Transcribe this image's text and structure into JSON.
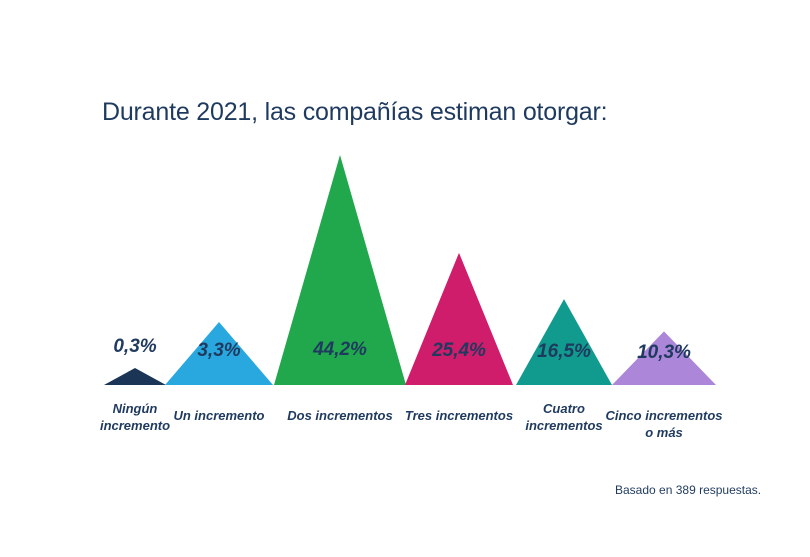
{
  "chart_data": {
    "type": "bar",
    "title": "Durante 2021, las compañías estiman otorgar:",
    "categories": [
      "Ningún incremento",
      "Un incremento",
      "Dos incrementos",
      "Tres incrementos",
      "Cuatro incrementos",
      "Cinco incrementos o más"
    ],
    "category_lines": [
      [
        "Ningún",
        "incremento"
      ],
      [
        "Un incremento"
      ],
      [
        "Dos incrementos"
      ],
      [
        "Tres incrementos"
      ],
      [
        "Cuatro",
        "incrementos"
      ],
      [
        "Cinco incrementos",
        "o más"
      ]
    ],
    "values": [
      0.3,
      3.3,
      44.2,
      25.4,
      16.5,
      10.3
    ],
    "value_labels": [
      "0,3%",
      "3,3%",
      "44,2%",
      "25,4%",
      "16,5%",
      "10,3%"
    ],
    "colors": [
      "#1b3557",
      "#29a8e0",
      "#21a84c",
      "#cf1c6b",
      "#119b8e",
      "#ab86d9"
    ],
    "unit": "%",
    "footnote": "Basado en 389 respuestas."
  }
}
